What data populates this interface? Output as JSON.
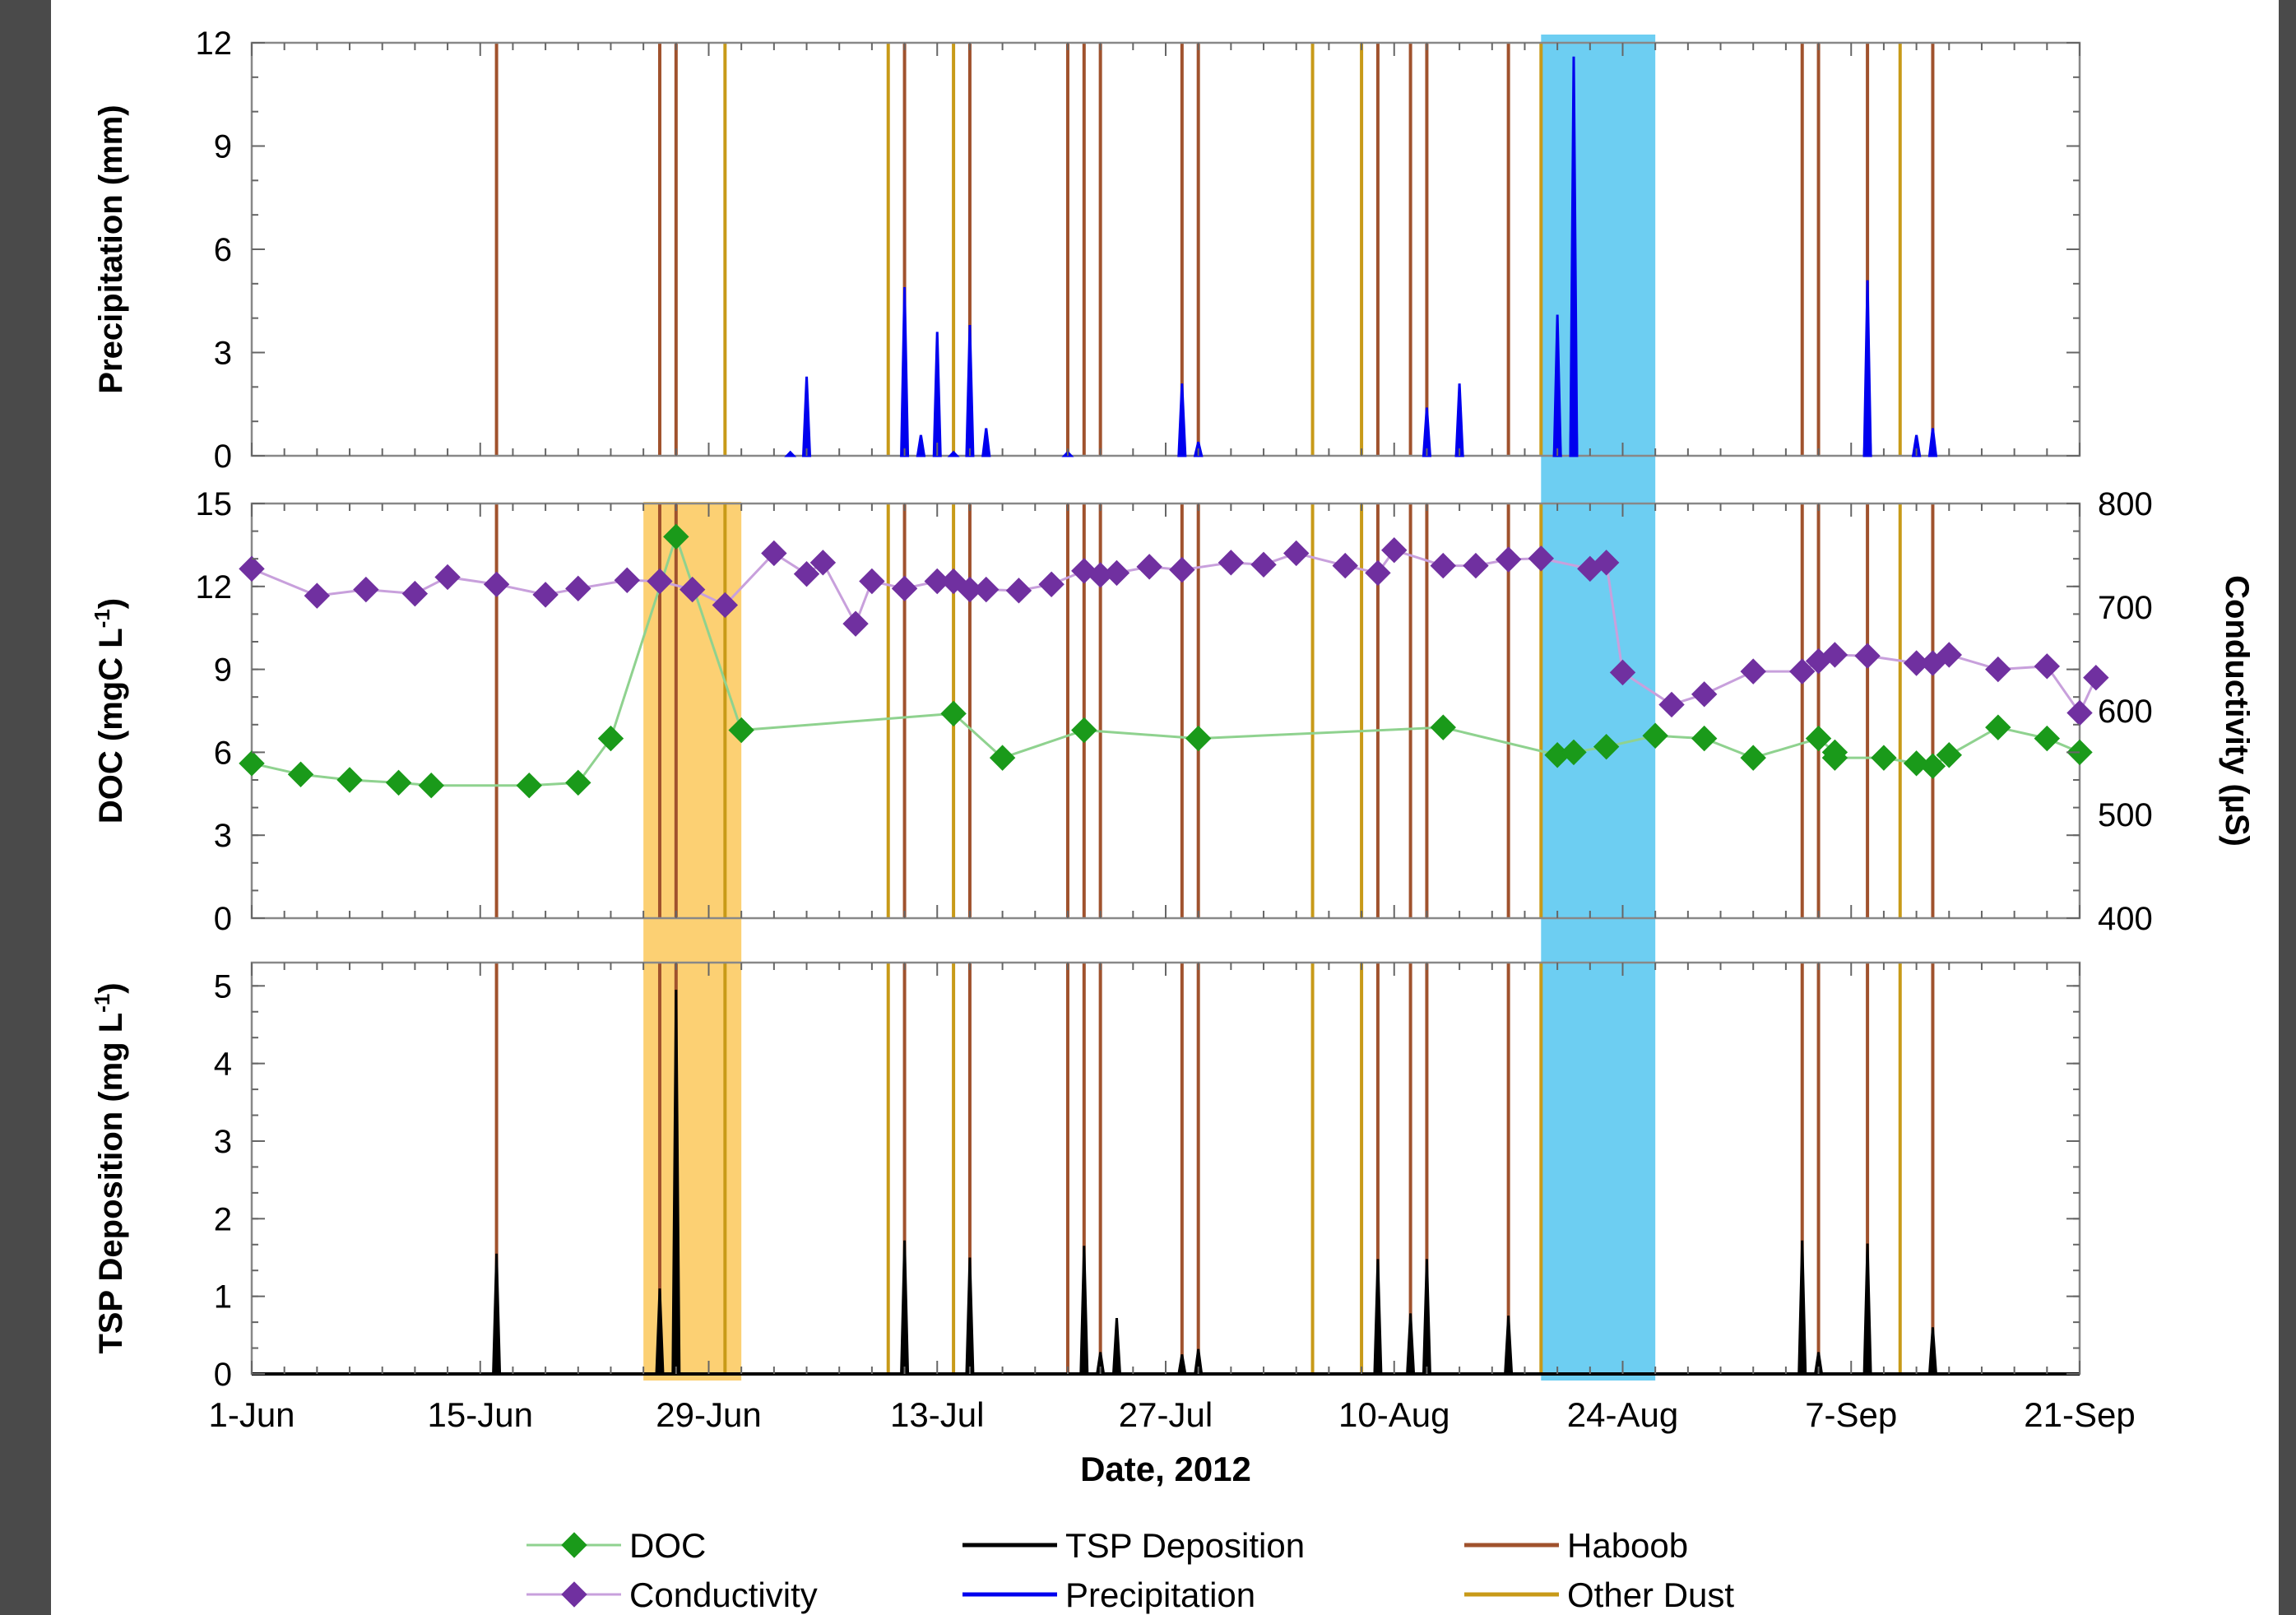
{
  "chart_data": {
    "type": "line",
    "xlabel": "Date, 2012",
    "x_ticks": [
      "1-Jun",
      "15-Jun",
      "29-Jun",
      "13-Jul",
      "27-Jul",
      "10-Aug",
      "24-Aug",
      "7-Sep",
      "21-Sep"
    ],
    "x_range": [
      "2012-06-01",
      "2012-09-21"
    ],
    "haboob_dates": [
      "2012-06-16",
      "2012-06-26",
      "2012-06-27",
      "2012-07-11",
      "2012-07-15",
      "2012-07-21",
      "2012-07-22",
      "2012-07-23",
      "2012-07-28",
      "2012-07-29",
      "2012-08-09",
      "2012-08-11",
      "2012-08-12",
      "2012-08-17",
      "2012-09-04",
      "2012-09-05",
      "2012-09-08",
      "2012-09-12"
    ],
    "other_dust_dates": [
      "2012-06-30",
      "2012-07-10",
      "2012-07-14",
      "2012-08-05",
      "2012-08-08",
      "2012-08-19",
      "2012-09-10"
    ],
    "shaded_ranges": [
      {
        "start": "2012-06-25",
        "end": "2012-07-01",
        "color": "#fcc85a"
      },
      {
        "start": "2012-08-19",
        "end": "2012-08-26",
        "color": "#54c6f0"
      }
    ],
    "panels": [
      {
        "ylabel": "Precipitation (mm)",
        "ylim": [
          0,
          12
        ],
        "yticks": [
          0,
          3,
          6,
          9,
          12
        ],
        "series": [
          {
            "name": "Precipitation",
            "color": "#0000ee",
            "type": "spikes",
            "points": [
              [
                "2012-07-04",
                0.1
              ],
              [
                "2012-07-05",
                2.3
              ],
              [
                "2012-07-11",
                4.9
              ],
              [
                "2012-07-12",
                0.6
              ],
              [
                "2012-07-13",
                3.6
              ],
              [
                "2012-07-14",
                0.1
              ],
              [
                "2012-07-15",
                3.8
              ],
              [
                "2012-07-16",
                0.8
              ],
              [
                "2012-07-21",
                0.1
              ],
              [
                "2012-07-28",
                2.1
              ],
              [
                "2012-07-29",
                0.4
              ],
              [
                "2012-08-12",
                1.4
              ],
              [
                "2012-08-14",
                0.8
              ],
              [
                "2012-08-14",
                2.1
              ],
              [
                "2012-08-20",
                4.1
              ],
              [
                "2012-08-20",
                1.8
              ],
              [
                "2012-08-21",
                11.6
              ],
              [
                "2012-08-21",
                5.8
              ],
              [
                "2012-09-08",
                5.1
              ],
              [
                "2012-09-08",
                2.6
              ],
              [
                "2012-09-11",
                0.6
              ],
              [
                "2012-09-12",
                0.8
              ]
            ]
          }
        ]
      },
      {
        "ylabel": "DOC (mgC L-1)",
        "ylabel_main": "DOC (mgC L",
        "ylabel_sup": "-1",
        "ylabel_tail": ")",
        "ylim": [
          0,
          15
        ],
        "yticks": [
          0,
          3,
          6,
          9,
          12,
          15
        ],
        "y2label": "Conductivity (µS)",
        "y2lim": [
          400,
          800
        ],
        "y2ticks": [
          400,
          500,
          600,
          700,
          800
        ],
        "series": [
          {
            "name": "DOC",
            "axis": "left",
            "color": "#1a9a1a",
            "line_color": "#8fd28f",
            "points": [
              [
                "2012-06-01",
                5.6
              ],
              [
                "2012-06-04",
                5.2
              ],
              [
                "2012-06-07",
                5.0
              ],
              [
                "2012-06-10",
                4.9
              ],
              [
                "2012-06-12",
                4.8
              ],
              [
                "2012-06-18",
                4.8
              ],
              [
                "2012-06-21",
                4.9
              ],
              [
                "2012-06-23",
                6.5
              ],
              [
                "2012-06-27",
                13.8
              ],
              [
                "2012-07-01",
                6.8
              ],
              [
                "2012-07-14",
                7.4
              ],
              [
                "2012-07-17",
                5.8
              ],
              [
                "2012-07-22",
                6.8
              ],
              [
                "2012-07-29",
                6.5
              ],
              [
                "2012-08-13",
                6.9
              ],
              [
                "2012-08-20",
                5.9
              ],
              [
                "2012-08-21",
                6.0
              ],
              [
                "2012-08-23",
                6.2
              ],
              [
                "2012-08-26",
                6.6
              ],
              [
                "2012-08-29",
                6.5
              ],
              [
                "2012-09-01",
                5.8
              ],
              [
                "2012-09-05",
                6.5
              ],
              [
                "2012-09-06",
                6.0
              ],
              [
                "2012-09-06",
                5.8
              ],
              [
                "2012-09-09",
                5.8
              ],
              [
                "2012-09-11",
                5.6
              ],
              [
                "2012-09-12",
                5.5
              ],
              [
                "2012-09-13",
                5.9
              ],
              [
                "2012-09-16",
                6.9
              ],
              [
                "2012-09-19",
                6.5
              ],
              [
                "2012-09-21",
                6.0
              ]
            ]
          },
          {
            "name": "Conductivity",
            "axis": "right",
            "color": "#7030a0",
            "line_color": "#c8a0dc",
            "points": [
              [
                "2012-06-01",
                737
              ],
              [
                "2012-06-05",
                711
              ],
              [
                "2012-06-08",
                717
              ],
              [
                "2012-06-11",
                713
              ],
              [
                "2012-06-13",
                729
              ],
              [
                "2012-06-16",
                722
              ],
              [
                "2012-06-19",
                712
              ],
              [
                "2012-06-21",
                718
              ],
              [
                "2012-06-24",
                726
              ],
              [
                "2012-06-26",
                725
              ],
              [
                "2012-06-28",
                717
              ],
              [
                "2012-06-30",
                702
              ],
              [
                "2012-07-03",
                752
              ],
              [
                "2012-07-05",
                732
              ],
              [
                "2012-07-06",
                743
              ],
              [
                "2012-07-08",
                684
              ],
              [
                "2012-07-09",
                725
              ],
              [
                "2012-07-11",
                718
              ],
              [
                "2012-07-13",
                725
              ],
              [
                "2012-07-14",
                725
              ],
              [
                "2012-07-15",
                717
              ],
              [
                "2012-07-16",
                717
              ],
              [
                "2012-07-18",
                716
              ],
              [
                "2012-07-20",
                722
              ],
              [
                "2012-07-22",
                735
              ],
              [
                "2012-07-23",
                731
              ],
              [
                "2012-07-24",
                733
              ],
              [
                "2012-07-26",
                739
              ],
              [
                "2012-07-28",
                736
              ],
              [
                "2012-07-31",
                743
              ],
              [
                "2012-08-02",
                741
              ],
              [
                "2012-08-04",
                752
              ],
              [
                "2012-08-07",
                740
              ],
              [
                "2012-08-09",
                733
              ],
              [
                "2012-08-10",
                755
              ],
              [
                "2012-08-13",
                740
              ],
              [
                "2012-08-15",
                740
              ],
              [
                "2012-08-17",
                746
              ],
              [
                "2012-08-19",
                747
              ],
              [
                "2012-08-22",
                737
              ],
              [
                "2012-08-23",
                743
              ],
              [
                "2012-08-24",
                637
              ],
              [
                "2012-08-27",
                606
              ],
              [
                "2012-08-29",
                616
              ],
              [
                "2012-09-01",
                638
              ],
              [
                "2012-09-04",
                638
              ],
              [
                "2012-09-05",
                648
              ],
              [
                "2012-09-06",
                654
              ],
              [
                "2012-09-08",
                653
              ],
              [
                "2012-09-11",
                646
              ],
              [
                "2012-09-12",
                646
              ],
              [
                "2012-09-13",
                654
              ],
              [
                "2012-09-16",
                640
              ],
              [
                "2012-09-19",
                643
              ],
              [
                "2012-09-21",
                598
              ],
              [
                "2012-09-22",
                632
              ]
            ]
          }
        ]
      },
      {
        "ylabel": "TSP Deposition (mg L-1)",
        "ylabel_main": "TSP Deposition (mg L",
        "ylabel_sup": "-1",
        "ylabel_tail": ")",
        "ylim": [
          0,
          5.3
        ],
        "yticks": [
          0,
          1,
          2,
          3,
          4,
          5
        ],
        "series": [
          {
            "name": "TSP Deposition",
            "color": "#000000",
            "type": "spikes",
            "points": [
              [
                "2012-06-16",
                1.55
              ],
              [
                "2012-06-26",
                1.1
              ],
              [
                "2012-06-27",
                4.95
              ],
              [
                "2012-07-11",
                1.72
              ],
              [
                "2012-07-15",
                1.5
              ],
              [
                "2012-07-22",
                1.65
              ],
              [
                "2012-07-23",
                0.28
              ],
              [
                "2012-07-24",
                0.72
              ],
              [
                "2012-07-28",
                0.25
              ],
              [
                "2012-07-29",
                0.32
              ],
              [
                "2012-08-09",
                1.48
              ],
              [
                "2012-08-11",
                0.78
              ],
              [
                "2012-08-12",
                1.48
              ],
              [
                "2012-08-17",
                0.75
              ],
              [
                "2012-09-04",
                1.72
              ],
              [
                "2012-09-05",
                0.28
              ],
              [
                "2012-09-08",
                1.68
              ],
              [
                "2012-09-12",
                0.6
              ]
            ]
          }
        ]
      }
    ],
    "legend": [
      {
        "label": "DOC",
        "color": "#1a9a1a",
        "line_color": "#8fd28f",
        "marker": "diamond"
      },
      {
        "label": "TSP Deposition",
        "color": "#000000",
        "marker": "none"
      },
      {
        "label": "Haboob",
        "color": "#a0522d",
        "marker": "none"
      },
      {
        "label": "Conductivity",
        "color": "#7030a0",
        "line_color": "#c8a0dc",
        "marker": "diamond"
      },
      {
        "label": "Precipitation",
        "color": "#0000ee",
        "marker": "none"
      },
      {
        "label": "Other Dust",
        "color": "#c89a18",
        "marker": "none"
      }
    ],
    "legend_placement": "bottom"
  }
}
